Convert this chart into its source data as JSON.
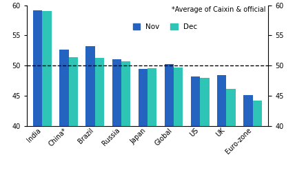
{
  "categories": [
    "India",
    "China*",
    "Brazil",
    "Russia",
    "Japan",
    "Global",
    "US",
    "UK",
    "Euro-zone"
  ],
  "nov_values": [
    59.2,
    52.7,
    53.2,
    51.0,
    49.5,
    50.3,
    48.2,
    48.4,
    45.1
  ],
  "dec_values": [
    59.0,
    51.4,
    51.3,
    50.7,
    49.6,
    49.7,
    48.0,
    46.2,
    44.2
  ],
  "nov_color": "#2563c0",
  "dec_color": "#2ec4b6",
  "ylim": [
    40,
    60
  ],
  "yticks": [
    40,
    45,
    50,
    55,
    60
  ],
  "dashed_line_y": 50,
  "annotation": "*Average of Caixin & official",
  "legend_nov": "Nov",
  "legend_dec": "Dec",
  "bar_width": 0.35,
  "background_color": "#ffffff"
}
